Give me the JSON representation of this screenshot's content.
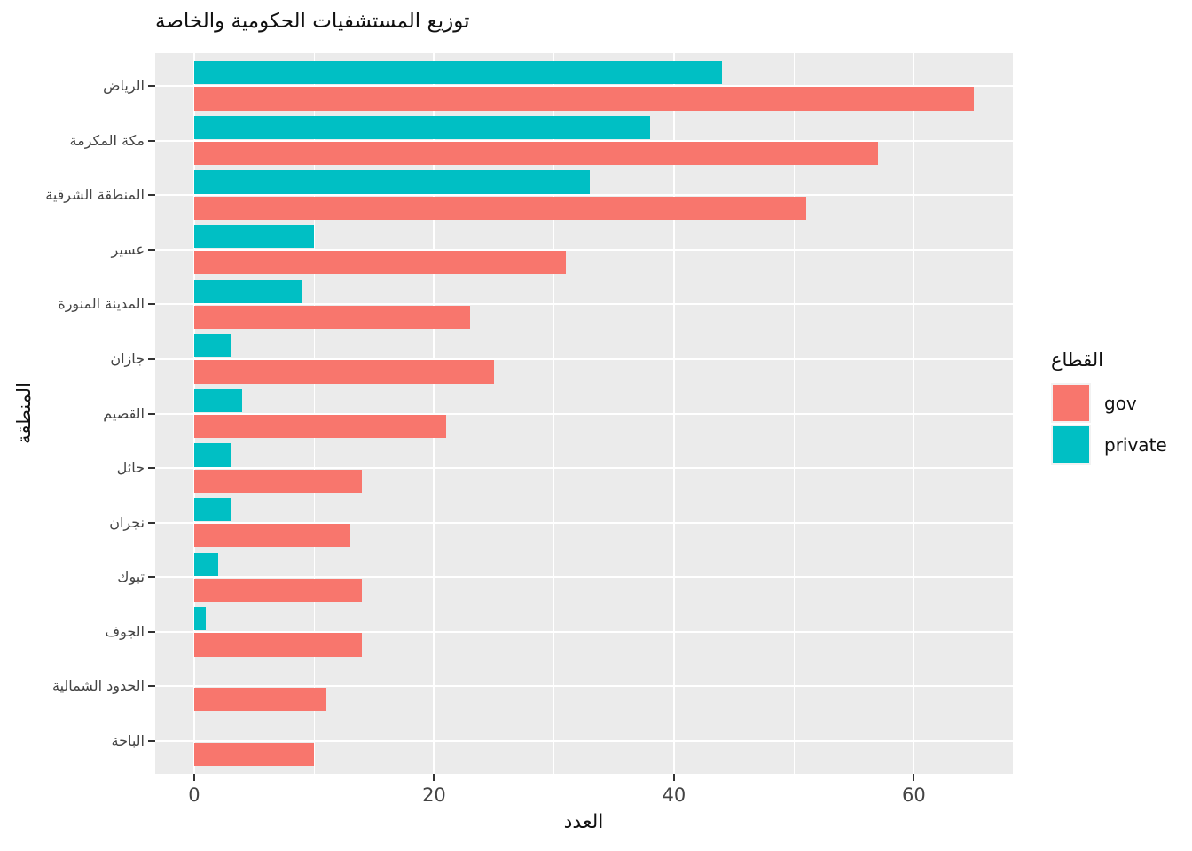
{
  "colors": {
    "gov": "#F8766D",
    "private": "#00BFC4",
    "panel_background": "#EBEBEB",
    "gridline": "#FFFFFF",
    "tick_mark": "#333333",
    "tick_label": "#444444"
  },
  "legend": {
    "title": "القطاع",
    "items": [
      {
        "label": "gov",
        "color": "#F8766D"
      },
      {
        "label": "private",
        "color": "#00BFC4"
      }
    ]
  },
  "chart_data": {
    "type": "bar",
    "orientation": "horizontal",
    "title": "توزيع المستشفيات الحكومية والخاصة",
    "xlabel": "العدد",
    "ylabel": "المنطقة",
    "xlim": [
      -3.25,
      68.25
    ],
    "x_major_ticks": [
      0,
      20,
      40,
      60
    ],
    "x_minor_gridlines": [
      10,
      30,
      50
    ],
    "grid": true,
    "legend_position": "right",
    "categories": [
      "الرياض",
      "مكة المكرمة",
      "المنطقة الشرقية",
      "عسير",
      "المدينة المنورة",
      "جازان",
      "القصيم",
      "حائل",
      "نجران",
      "تبوك",
      "الجوف",
      "الحدود الشمالية",
      "الباحة"
    ],
    "series": [
      {
        "name": "gov",
        "color": "#F8766D",
        "values": [
          65,
          57,
          51,
          31,
          23,
          25,
          21,
          14,
          13,
          14,
          14,
          11,
          10
        ]
      },
      {
        "name": "private",
        "color": "#00BFC4",
        "values": [
          44,
          38,
          33,
          10,
          9,
          3,
          4,
          3,
          3,
          2,
          1,
          0,
          0
        ]
      }
    ]
  }
}
